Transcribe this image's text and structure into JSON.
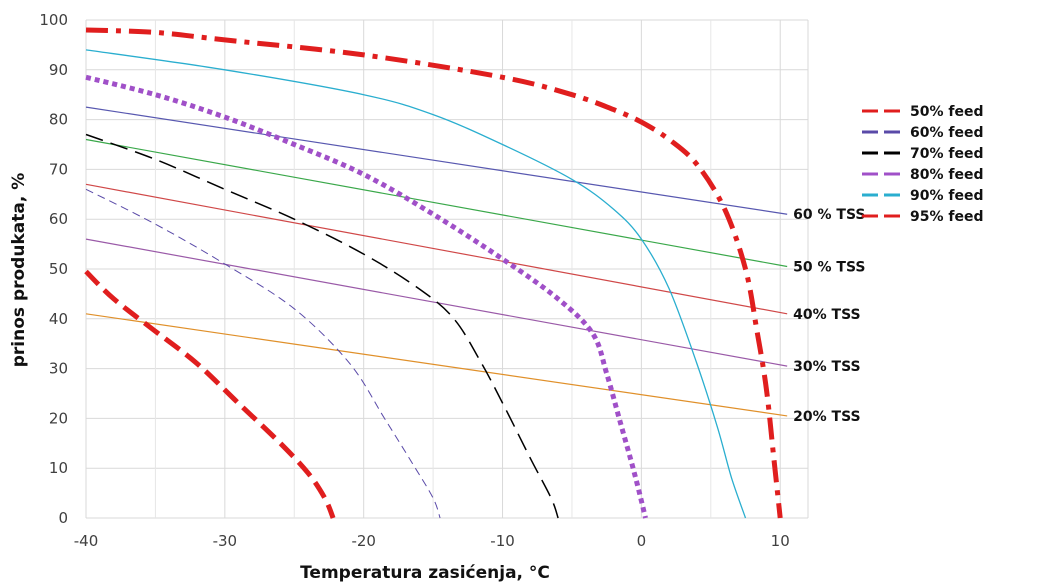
{
  "chart_data": {
    "type": "line",
    "xlabel": "Temperatura zasićenja, °C",
    "ylabel": "prinos produkata, %",
    "xlim": [
      -40,
      12
    ],
    "ylim": [
      0,
      100
    ],
    "x_ticks": [
      "-40",
      "-30",
      "-20",
      "-10",
      "0",
      "10"
    ],
    "y_ticks": [
      "0",
      "10",
      "20",
      "30",
      "40",
      "50",
      "60",
      "70",
      "80",
      "90",
      "100"
    ],
    "grid": true,
    "legend_position": "right",
    "legend": [
      {
        "label": "50% feed",
        "color": "#e01e1e",
        "dash": "long"
      },
      {
        "label": "60% feed",
        "color": "#5a4aa8",
        "dash": "long"
      },
      {
        "label": "70% feed",
        "color": "#000000",
        "dash": "long"
      },
      {
        "label": "80% feed",
        "color": "#a050c8",
        "dash": "long"
      },
      {
        "label": "90% feed",
        "color": "#2aaecf",
        "dash": "long"
      },
      {
        "label": "95% feed",
        "color": "#e01e1e",
        "dash": "long"
      }
    ],
    "tss_lines": [
      {
        "label": "60 % TSS",
        "color": "#5858b0",
        "x": [
          -40,
          10.5
        ],
        "y": [
          82.5,
          61
        ]
      },
      {
        "label": "50 % TSS",
        "color": "#3aa84a",
        "x": [
          -40,
          10.5
        ],
        "y": [
          76,
          50.5
        ]
      },
      {
        "label": "40% TSS",
        "color": "#d04848",
        "x": [
          -40,
          10.5
        ],
        "y": [
          67,
          41
        ]
      },
      {
        "label": "30% TSS",
        "color": "#9a5aa8",
        "x": [
          -40,
          10.5
        ],
        "y": [
          56,
          30.5
        ]
      },
      {
        "label": "20% TSS",
        "color": "#e0902a",
        "x": [
          -40,
          10.5
        ],
        "y": [
          41,
          20.5
        ]
      }
    ],
    "feed_curves": [
      {
        "name": "50% feed",
        "color": "#e01e1e",
        "style": "dash",
        "width": 5,
        "x": [
          -40,
          -38,
          -35,
          -32,
          -29,
          -26,
          -24,
          -22.8,
          -22.2
        ],
        "y": [
          49.5,
          44,
          37.5,
          31,
          23,
          15,
          9,
          4,
          0
        ]
      },
      {
        "name": "60% feed",
        "color": "#5a4aa8",
        "style": "thin-dash",
        "width": 1,
        "x": [
          -40,
          -35,
          -30,
          -25,
          -21,
          -18.5,
          -16.5,
          -15,
          -14.5
        ],
        "y": [
          66,
          59,
          51,
          42,
          31,
          20,
          11,
          4,
          0
        ]
      },
      {
        "name": "70% feed",
        "color": "#000000",
        "style": "dash",
        "width": 1.5,
        "x": [
          -40,
          -35,
          -30,
          -25,
          -20,
          -16,
          -13.5,
          -11.5,
          -9.8,
          -8,
          -6.5,
          -6
        ],
        "y": [
          77,
          72,
          66,
          60,
          53,
          46,
          40,
          31,
          22,
          12,
          4,
          0
        ]
      },
      {
        "name": "80% feed",
        "color": "#a050c8",
        "style": "dot",
        "width": 5,
        "x": [
          -40,
          -35,
          -30,
          -25,
          -20,
          -15,
          -10,
          -6,
          -3.5,
          -2.5,
          -1.5,
          -0.5,
          0.3
        ],
        "y": [
          88.5,
          85,
          80.5,
          75,
          69,
          61,
          52,
          44,
          37,
          29,
          19,
          9,
          0
        ]
      },
      {
        "name": "90% feed",
        "color": "#2aaecf",
        "style": "solid",
        "width": 1.3,
        "x": [
          -40,
          -30,
          -20,
          -15,
          -10,
          -5,
          -2,
          0,
          2,
          4,
          5.5,
          6.5,
          7.5
        ],
        "y": [
          94,
          90,
          85,
          81,
          75,
          68,
          62,
          56,
          46,
          31,
          18,
          8,
          0
        ]
      },
      {
        "name": "95% feed",
        "color": "#e01e1e",
        "style": "dash-dot",
        "width": 5,
        "x": [
          -40,
          -35,
          -30,
          -20,
          -10,
          -5,
          -2,
          0,
          2,
          4,
          6,
          7.5,
          8.3,
          9,
          9.5,
          10
        ],
        "y": [
          98,
          97.5,
          96,
          93,
          88.5,
          85,
          82,
          79.5,
          76,
          71,
          62,
          50,
          38,
          26,
          13,
          0
        ]
      }
    ]
  }
}
